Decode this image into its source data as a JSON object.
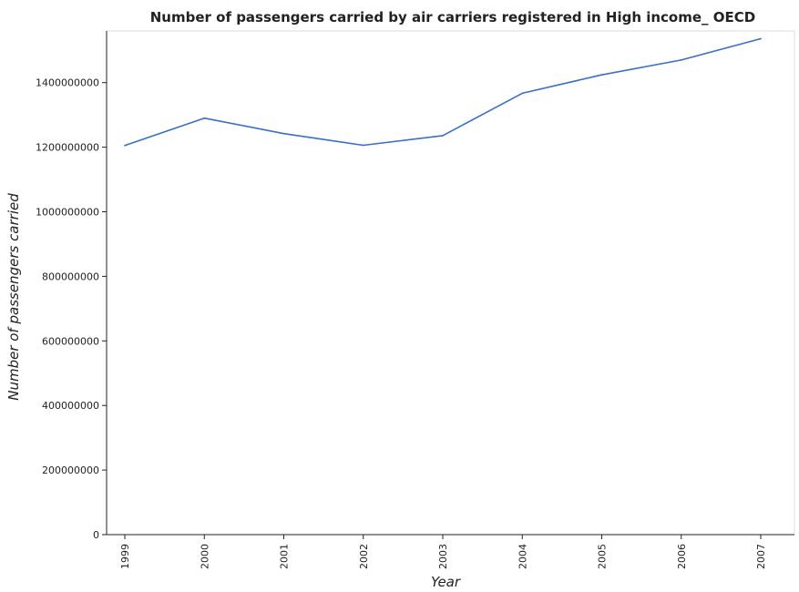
{
  "chart_data": {
    "type": "line",
    "title": "Number of passengers carried by air carriers registered in High income_ OECD",
    "xlabel": "Year",
    "ylabel": "Number of passengers carried",
    "categories": [
      "1999",
      "2000",
      "2001",
      "2002",
      "2003",
      "2004",
      "2005",
      "2006",
      "2007"
    ],
    "series": [
      {
        "values": [
          1205000000,
          1290000000,
          1242000000,
          1206000000,
          1236000000,
          1367000000,
          1424000000,
          1470000000,
          1536000000
        ]
      }
    ],
    "ylim": [
      0,
      1560000000
    ],
    "yticks": [
      0,
      200000000,
      400000000,
      600000000,
      800000000,
      1000000000,
      1200000000,
      1400000000
    ],
    "ytick_labels": [
      "0",
      "200000000",
      "400000000",
      "600000000",
      "800000000",
      "1000000000",
      "1200000000",
      "1400000000"
    ],
    "grid": false,
    "colors": {
      "line": "#3a6fc4",
      "axis": "#222222"
    }
  }
}
